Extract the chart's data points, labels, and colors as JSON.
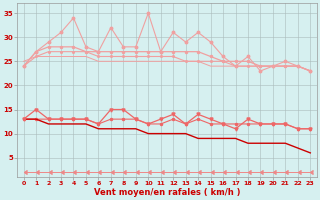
{
  "xlabel": "Vent moyen/en rafales ( km/h )",
  "background_color": "#d6f0f0",
  "grid_color": "#aabbbb",
  "xlim": [
    -0.5,
    23.5
  ],
  "ylim": [
    1,
    37
  ],
  "yticks": [
    5,
    10,
    15,
    20,
    25,
    30,
    35
  ],
  "xticks": [
    0,
    1,
    2,
    3,
    4,
    5,
    6,
    7,
    8,
    9,
    10,
    11,
    12,
    13,
    14,
    15,
    16,
    17,
    18,
    19,
    20,
    21,
    22,
    23
  ],
  "x": [
    0,
    1,
    2,
    3,
    4,
    5,
    6,
    7,
    8,
    9,
    10,
    11,
    12,
    13,
    14,
    15,
    16,
    17,
    18,
    19,
    20,
    21,
    22,
    23
  ],
  "line_spike": [
    24,
    27,
    29,
    31,
    34,
    28,
    27,
    32,
    28,
    28,
    35,
    27,
    31,
    29,
    31,
    29,
    26,
    24,
    26,
    23,
    24,
    25,
    24,
    23
  ],
  "line_smooth1": [
    24,
    27,
    28,
    28,
    28,
    27,
    27,
    27,
    27,
    27,
    27,
    27,
    27,
    27,
    27,
    26,
    25,
    25,
    25,
    24,
    24,
    24,
    24,
    23
  ],
  "line_smooth2": [
    24,
    26,
    27,
    27,
    27,
    27,
    26,
    26,
    26,
    26,
    26,
    26,
    26,
    25,
    25,
    25,
    25,
    24,
    24,
    24,
    24,
    24,
    24,
    23
  ],
  "line_upper_trend": [
    25,
    26,
    26,
    26,
    26,
    26,
    25,
    25,
    25,
    25,
    25,
    25,
    25,
    25,
    25,
    24,
    24,
    24,
    24,
    24,
    24,
    24,
    24,
    23
  ],
  "line_mid_spike": [
    13,
    15,
    13,
    13,
    13,
    13,
    12,
    15,
    15,
    13,
    12,
    13,
    14,
    12,
    14,
    13,
    12,
    11,
    13,
    12,
    12,
    12,
    11,
    11
  ],
  "line_mid_smooth": [
    13,
    13,
    13,
    13,
    13,
    13,
    12,
    13,
    13,
    13,
    12,
    12,
    13,
    12,
    13,
    12,
    12,
    12,
    12,
    12,
    12,
    12,
    11,
    11
  ],
  "line_diagonal": [
    13,
    13,
    12,
    12,
    12,
    12,
    11,
    11,
    11,
    11,
    10,
    10,
    10,
    10,
    9,
    9,
    9,
    9,
    8,
    8,
    8,
    8,
    7,
    6
  ],
  "line_bottom": [
    2,
    2,
    2,
    2,
    2,
    2,
    2,
    2,
    2,
    2,
    2,
    2,
    2,
    2,
    2,
    2,
    2,
    2,
    2,
    2,
    2,
    2,
    2,
    2
  ],
  "color_light": "#f0a0a0",
  "color_mid": "#ee6666",
  "color_dark": "#cc0000",
  "color_diag": "#cc0000",
  "color_bottom": "#ee8888",
  "xlabel_color": "#cc0000",
  "tick_color": "#cc0000"
}
